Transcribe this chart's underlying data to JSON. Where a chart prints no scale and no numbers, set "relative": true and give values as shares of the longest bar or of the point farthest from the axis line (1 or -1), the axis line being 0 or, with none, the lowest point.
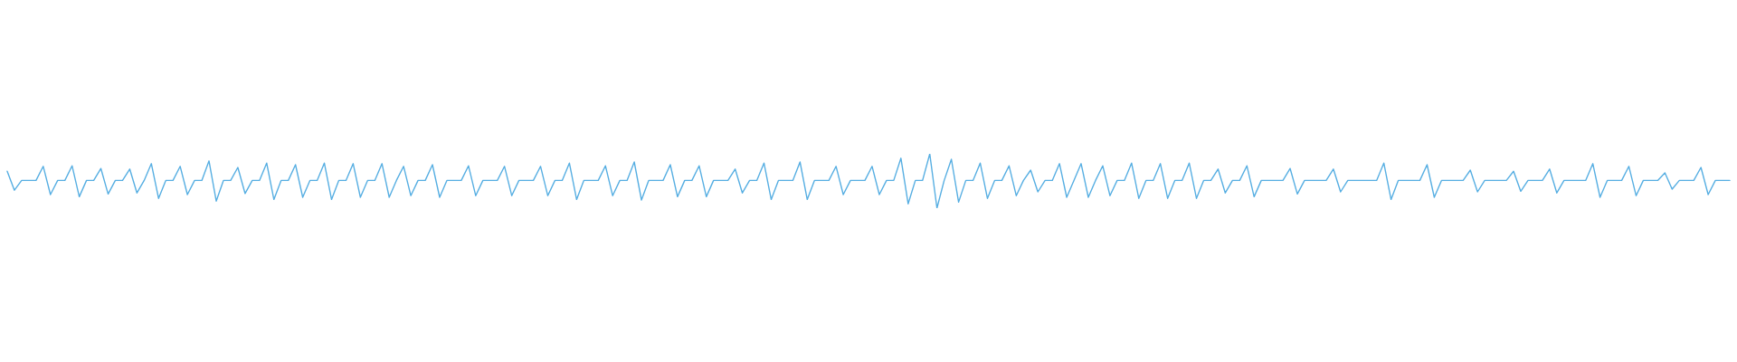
{
  "chart_data": {
    "type": "line",
    "relative": true,
    "categories": [
      null,
      null,
      null,
      null,
      null,
      null,
      null,
      null,
      null,
      null,
      null,
      null,
      null,
      null,
      null,
      null,
      null,
      null,
      null,
      null,
      null,
      null,
      null,
      null,
      null,
      null,
      null,
      null,
      null,
      null,
      null,
      null,
      null,
      null,
      null,
      null,
      null,
      null,
      null,
      null,
      null,
      null,
      null,
      null,
      null,
      null,
      null,
      null,
      null,
      null,
      null,
      null,
      null,
      null,
      null,
      null,
      null,
      null,
      null,
      null,
      null,
      null,
      null,
      null,
      null,
      null,
      null,
      null,
      null,
      null,
      null,
      null,
      null,
      null,
      null,
      null,
      null,
      null,
      null,
      null,
      null,
      null,
      null,
      null,
      null,
      null,
      null,
      null,
      null,
      null,
      null,
      null,
      null,
      null,
      null,
      null,
      null,
      null,
      null,
      null,
      null,
      null,
      null,
      null,
      null,
      null,
      null,
      null,
      null,
      null,
      null,
      null,
      null,
      null,
      null,
      null,
      null,
      null,
      null,
      null,
      null,
      null,
      null,
      null,
      null,
      null,
      null,
      null,
      null,
      null,
      null,
      null,
      null,
      null,
      null,
      null,
      null,
      null,
      null,
      null,
      null,
      null,
      null,
      null,
      null,
      null,
      null,
      null,
      null,
      null,
      null,
      null,
      null,
      null,
      null,
      null,
      null,
      null,
      null,
      null,
      null,
      null,
      null,
      null,
      null,
      null,
      null,
      null,
      null,
      null,
      null,
      null,
      null,
      null,
      null,
      null,
      null,
      null,
      null,
      null,
      null,
      null,
      null,
      null,
      null,
      null,
      null,
      null,
      null,
      null,
      null,
      null,
      null,
      null,
      null,
      null,
      null,
      null,
      null,
      null,
      null,
      null,
      null,
      null,
      null,
      null,
      null,
      null,
      null,
      null,
      null,
      null,
      null,
      null,
      null,
      null,
      null,
      null,
      null,
      null,
      null,
      null,
      null,
      null,
      null,
      null,
      null,
      null,
      null,
      null,
      null,
      null,
      null,
      null,
      null,
      null,
      null,
      null,
      null,
      null
    ],
    "series": [
      {
        "color": "#56aee2",
        "values": [
          0.68,
          0.33,
          0.51,
          0.51,
          0.51,
          0.77,
          0.25,
          0.51,
          0.51,
          0.78,
          0.21,
          0.51,
          0.51,
          0.73,
          0.26,
          0.51,
          0.51,
          0.72,
          0.28,
          0.51,
          0.82,
          0.18,
          0.51,
          0.51,
          0.77,
          0.25,
          0.51,
          0.51,
          0.87,
          0.13,
          0.51,
          0.51,
          0.75,
          0.27,
          0.51,
          0.51,
          0.83,
          0.16,
          0.51,
          0.51,
          0.8,
          0.2,
          0.51,
          0.51,
          0.83,
          0.16,
          0.51,
          0.51,
          0.82,
          0.2,
          0.51,
          0.51,
          0.82,
          0.2,
          0.51,
          0.77,
          0.23,
          0.51,
          0.51,
          0.8,
          0.2,
          0.51,
          0.51,
          0.51,
          0.78,
          0.23,
          0.51,
          0.51,
          0.51,
          0.77,
          0.23,
          0.51,
          0.51,
          0.51,
          0.77,
          0.23,
          0.51,
          0.51,
          0.83,
          0.16,
          0.51,
          0.51,
          0.51,
          0.78,
          0.23,
          0.51,
          0.51,
          0.85,
          0.15,
          0.51,
          0.51,
          0.51,
          0.8,
          0.21,
          0.51,
          0.51,
          0.78,
          0.21,
          0.51,
          0.51,
          0.51,
          0.72,
          0.28,
          0.51,
          0.51,
          0.83,
          0.16,
          0.51,
          0.51,
          0.51,
          0.85,
          0.16,
          0.51,
          0.51,
          0.51,
          0.77,
          0.25,
          0.51,
          0.51,
          0.51,
          0.77,
          0.25,
          0.51,
          0.51,
          0.92,
          0.08,
          0.51,
          0.51,
          1,
          0,
          0.51,
          0.9,
          0.11,
          0.51,
          0.51,
          0.83,
          0.18,
          0.51,
          0.51,
          0.78,
          0.23,
          0.51,
          0.7,
          0.3,
          0.51,
          0.51,
          0.82,
          0.2,
          0.51,
          0.82,
          0.2,
          0.51,
          0.78,
          0.23,
          0.51,
          0.51,
          0.83,
          0.18,
          0.51,
          0.51,
          0.82,
          0.18,
          0.51,
          0.51,
          0.83,
          0.18,
          0.51,
          0.51,
          0.72,
          0.28,
          0.51,
          0.51,
          0.78,
          0.21,
          0.51,
          0.51,
          0.51,
          0.51,
          0.73,
          0.26,
          0.51,
          0.51,
          0.51,
          0.51,
          0.72,
          0.3,
          0.51,
          0.51,
          0.51,
          0.51,
          0.51,
          0.83,
          0.16,
          0.51,
          0.51,
          0.51,
          0.51,
          0.8,
          0.2,
          0.51,
          0.51,
          0.51,
          0.51,
          0.7,
          0.3,
          0.51,
          0.51,
          0.51,
          0.51,
          0.68,
          0.31,
          0.51,
          0.51,
          0.51,
          0.72,
          0.28,
          0.51,
          0.51,
          0.51,
          0.51,
          0.82,
          0.2,
          0.51,
          0.51,
          0.51,
          0.77,
          0.23,
          0.51,
          0.51,
          0.51,
          0.65,
          0.35,
          0.51,
          0.51,
          0.51,
          0.75,
          0.25,
          0.51,
          0.51,
          0.51
        ]
      }
    ]
  }
}
